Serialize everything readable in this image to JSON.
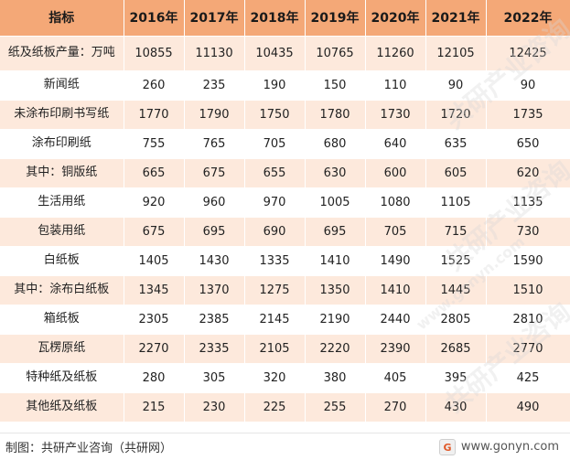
{
  "table": {
    "header": [
      "指标",
      "2016年",
      "2017年",
      "2018年",
      "2019年",
      "2020年",
      "2021年",
      "2022年"
    ],
    "rows": [
      {
        "name": "纸及纸板产量：万吨",
        "values": [
          "10855",
          "11130",
          "10435",
          "10765",
          "11260",
          "12105",
          "12425"
        ]
      },
      {
        "name": "新闻纸",
        "values": [
          "260",
          "235",
          "190",
          "150",
          "110",
          "90",
          "90"
        ]
      },
      {
        "name": "未涂布印刷书写纸",
        "values": [
          "1770",
          "1790",
          "1750",
          "1780",
          "1730",
          "1720",
          "1735"
        ]
      },
      {
        "name": "涂布印刷纸",
        "values": [
          "755",
          "765",
          "705",
          "680",
          "640",
          "635",
          "650"
        ]
      },
      {
        "name": "其中：铜版纸",
        "values": [
          "665",
          "675",
          "655",
          "630",
          "600",
          "605",
          "620"
        ]
      },
      {
        "name": "生活用纸",
        "values": [
          "920",
          "960",
          "970",
          "1005",
          "1080",
          "1105",
          "1135"
        ]
      },
      {
        "name": "包装用纸",
        "values": [
          "675",
          "695",
          "690",
          "695",
          "705",
          "715",
          "730"
        ]
      },
      {
        "name": "白纸板",
        "values": [
          "1405",
          "1430",
          "1335",
          "1410",
          "1490",
          "1525",
          "1590"
        ]
      },
      {
        "name": "其中：涂布白纸板",
        "values": [
          "1345",
          "1370",
          "1275",
          "1350",
          "1410",
          "1445",
          "1510"
        ]
      },
      {
        "name": "箱纸板",
        "values": [
          "2305",
          "2385",
          "2145",
          "2190",
          "2440",
          "2805",
          "2810"
        ]
      },
      {
        "name": "瓦楞原纸",
        "values": [
          "2270",
          "2335",
          "2105",
          "2220",
          "2390",
          "2685",
          "2770"
        ]
      },
      {
        "name": "特种纸及纸板",
        "values": [
          "280",
          "305",
          "320",
          "380",
          "405",
          "395",
          "425"
        ]
      },
      {
        "name": "其他纸及纸板",
        "values": [
          "215",
          "230",
          "225",
          "255",
          "270",
          "430",
          "490"
        ]
      }
    ]
  },
  "footer": {
    "source": "制图：共研产业咨询（共研网）",
    "site": "www.gonyn.com",
    "logo_letter": "G"
  },
  "watermark": {
    "text": "共研产业咨询",
    "site_text": "www.gonyn.com"
  },
  "colors": {
    "header_bg": "#f4a877",
    "odd_row_bg": "#fde9dc",
    "even_row_bg": "#ffffff",
    "logo_accent": "#e05a2a"
  }
}
